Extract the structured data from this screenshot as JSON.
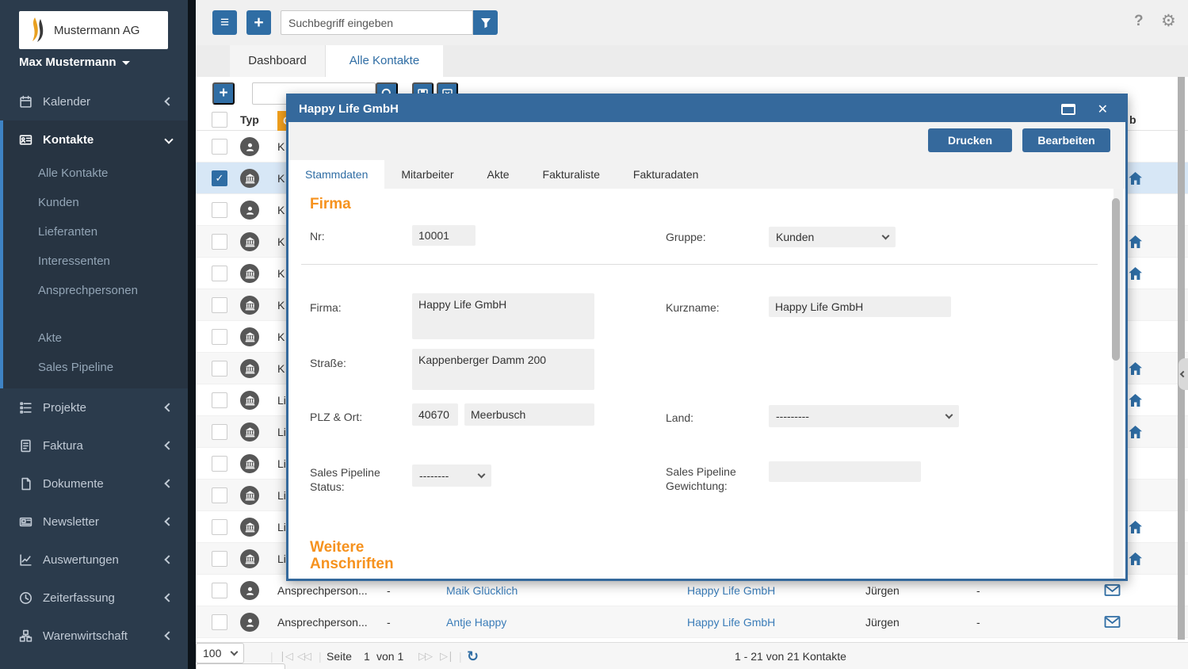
{
  "colors": {
    "accent_blue": "#2f6da4",
    "modal_blue": "#35699c",
    "orange": "#f6921e",
    "header_orange": "#f5a21d",
    "sidebar_bg": "#2b3b4c",
    "link_blue": "#3a7cb8",
    "selected_row": "#d7e7f6"
  },
  "icons": {
    "menu": "≡",
    "plus": "+",
    "help": "?",
    "gear": "⚙",
    "close": "✕",
    "refresh": "↻",
    "check": "✓"
  },
  "sidebar": {
    "brand": "Mustermann AG",
    "user": "Max Mustermann",
    "items": [
      {
        "label": "Kalender",
        "icon": "calendar-icon",
        "expanded": false
      },
      {
        "label": "Kontakte",
        "icon": "contacts-icon",
        "expanded": true,
        "children": [
          "Alle Kontakte",
          "Kunden",
          "Lieferanten",
          "Interessenten",
          "Ansprechpersonen",
          "Akte",
          "Sales Pipeline"
        ],
        "gap_after_index": 4
      },
      {
        "label": "Projekte",
        "icon": "list-icon",
        "expanded": false
      },
      {
        "label": "Faktura",
        "icon": "invoice-icon",
        "expanded": false
      },
      {
        "label": "Dokumente",
        "icon": "file-icon",
        "expanded": false
      },
      {
        "label": "Newsletter",
        "icon": "newsletter-icon",
        "expanded": false
      },
      {
        "label": "Auswertungen",
        "icon": "chart-icon",
        "expanded": false
      },
      {
        "label": "Zeiterfassung",
        "icon": "clock-icon",
        "expanded": false
      },
      {
        "label": "Warenwirtschaft",
        "icon": "boxes-icon",
        "expanded": false
      }
    ]
  },
  "topbar": {
    "search_placeholder": "Suchbegriff eingeben"
  },
  "page_tabs": {
    "inactive": "Dashboard",
    "active": "Alle Kontakte"
  },
  "list": {
    "header_typ": "Typ",
    "header_group_fragment": "G",
    "header_right_fragment": "b",
    "rows": [
      {
        "icon": "person",
        "label": "K",
        "checked": false,
        "selected": false,
        "home": false
      },
      {
        "icon": "bank",
        "label": "K",
        "checked": true,
        "selected": true,
        "home": true
      },
      {
        "icon": "person",
        "label": "K",
        "checked": false,
        "selected": false,
        "home": false
      },
      {
        "icon": "bank",
        "label": "K",
        "checked": false,
        "selected": false,
        "home": true
      },
      {
        "icon": "bank",
        "label": "K",
        "checked": false,
        "selected": false,
        "home": true
      },
      {
        "icon": "bank",
        "label": "K",
        "checked": false,
        "selected": false,
        "home": false
      },
      {
        "icon": "bank",
        "label": "K",
        "checked": false,
        "selected": false,
        "home": false
      },
      {
        "icon": "bank",
        "label": "K",
        "checked": false,
        "selected": false,
        "home": true
      },
      {
        "icon": "bank",
        "label": "Li",
        "checked": false,
        "selected": false,
        "home": true
      },
      {
        "icon": "bank",
        "label": "Li",
        "checked": false,
        "selected": false,
        "home": true
      },
      {
        "icon": "bank",
        "label": "Li",
        "checked": false,
        "selected": false,
        "home": false
      },
      {
        "icon": "bank",
        "label": "Li",
        "checked": false,
        "selected": false,
        "home": false
      },
      {
        "icon": "bank",
        "label": "Li",
        "checked": false,
        "selected": false,
        "home": true
      },
      {
        "icon": "bank",
        "label": "Li",
        "checked": false,
        "selected": false,
        "home": true
      }
    ],
    "full_rows": [
      {
        "typ": "Ansprechperson...",
        "col2": "-",
        "name": "Maik Glücklich",
        "company": "Happy Life GmbH",
        "contact": "Jürgen",
        "col6": "-"
      },
      {
        "typ": "Ansprechperson...",
        "col2": "-",
        "name": "Antje Happy",
        "company": "Happy Life GmbH",
        "contact": "Jürgen",
        "col6": "-"
      }
    ]
  },
  "pagination": {
    "page_size": "100",
    "seite_label": "Seite",
    "page": "1",
    "of_label": "von 1",
    "count": "1 - 21 von 21 Kontakte",
    "right_select": "-"
  },
  "modal": {
    "title": "Happy Life GmbH",
    "print_label": "Drucken",
    "edit_label": "Bearbeiten",
    "tabs": [
      "Stammdaten",
      "Mitarbeiter",
      "Akte",
      "Fakturaliste",
      "Fakturadaten"
    ],
    "active_tab": "Stammdaten",
    "section_firma": "Firma",
    "section_weitere": "Weitere Anschriften",
    "fields": {
      "nr_label": "Nr:",
      "nr_value": "10001",
      "gruppe_label": "Gruppe:",
      "gruppe_value": "Kunden",
      "firma_label": "Firma:",
      "firma_value": "Happy Life GmbH",
      "kurzname_label": "Kurzname:",
      "kurzname_value": "Happy Life GmbH",
      "strasse_label": "Straße:",
      "strasse_value": "Kappenberger Damm 200",
      "plzort_label": "PLZ & Ort:",
      "plz_value": "40670",
      "ort_value": "Meerbusch",
      "land_label": "Land:",
      "land_value": "---------",
      "sps_label": "Sales Pipeline Status:",
      "sps_value": "--------",
      "spg_label": "Sales Pipeline Gewichtung:",
      "spg_value": ""
    }
  }
}
